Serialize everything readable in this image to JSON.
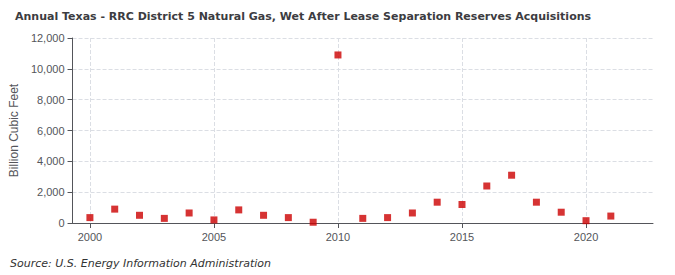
{
  "chart_data": {
    "type": "scatter",
    "title": "Annual Texas - RRC District 5 Natural Gas, Wet After Lease Separation Reserves Acquisitions",
    "ylabel": "Billion Cubic Feet",
    "source": "Source: U.S. Energy Information Administration",
    "x": [
      2000,
      2001,
      2002,
      2003,
      2004,
      2005,
      2006,
      2007,
      2008,
      2009,
      2010,
      2011,
      2012,
      2013,
      2014,
      2015,
      2016,
      2017,
      2018,
      2019,
      2020,
      2021
    ],
    "values": [
      350,
      900,
      500,
      300,
      650,
      200,
      850,
      500,
      350,
      50,
      10900,
      300,
      350,
      650,
      1350,
      1200,
      2400,
      3100,
      1350,
      700,
      150,
      450
    ],
    "color": "#cc0000",
    "marker": "square",
    "xlim": [
      1999.3,
      2022.7
    ],
    "xticks": [
      2000,
      2005,
      2010,
      2015,
      2020
    ],
    "ylim": [
      0,
      12000
    ],
    "yticks": [
      0,
      {
        "value": 2000,
        "label": "2,000"
      },
      {
        "value": 4000,
        "label": "4,000"
      },
      {
        "value": 6000,
        "label": "6,000"
      },
      {
        "value": 8000,
        "label": "8,000"
      },
      {
        "value": 10000,
        "label": "10,000"
      },
      {
        "value": 12000,
        "label": "12,000"
      }
    ],
    "grid": true
  }
}
